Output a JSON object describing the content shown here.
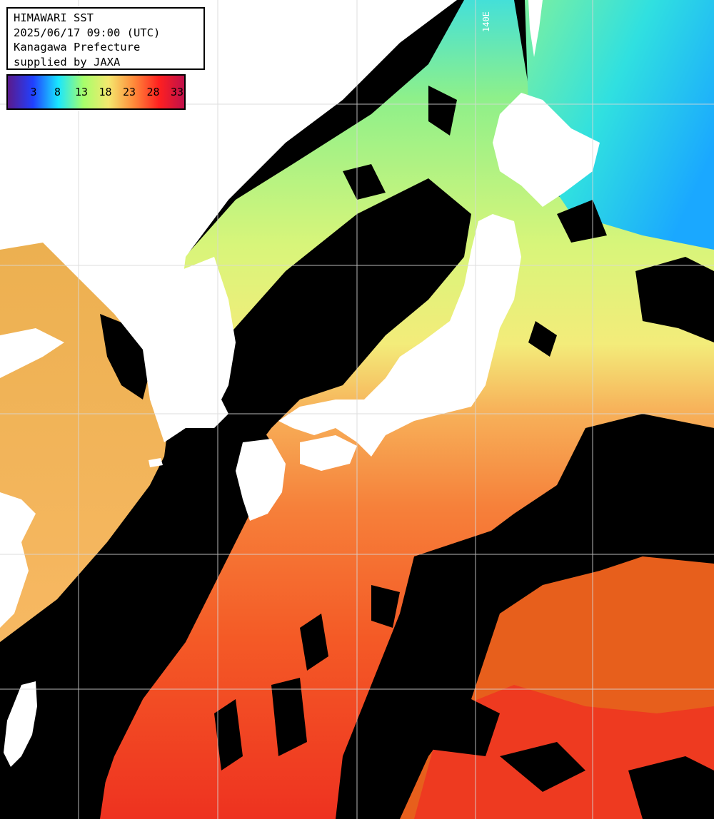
{
  "info": {
    "title": "HIMAWARI SST",
    "datetime": "2025/06/17 09:00 (UTC)",
    "region": "Kanagawa Prefecture",
    "credit": "supplied by JAXA"
  },
  "legend": {
    "labels": [
      "3",
      "8",
      "13",
      "18",
      "23",
      "28",
      "33"
    ],
    "colors": [
      "#5a1a8c",
      "#2040ff",
      "#19e6ff",
      "#a6ff6b",
      "#f4e86e",
      "#ff8a3a",
      "#ff2020",
      "#c0104a"
    ]
  },
  "grid": {
    "lon_label": "140E"
  },
  "colors": {
    "land": "#ffffff",
    "no_data": "#000000",
    "gridline": "#d8d8d8"
  }
}
